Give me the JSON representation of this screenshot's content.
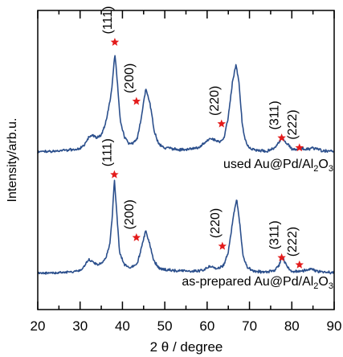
{
  "chart_data": {
    "type": "line",
    "xlabel": "2 θ / degree",
    "ylabel": "Intensity/arb.u.",
    "xlim": [
      20,
      90
    ],
    "xticks": [
      20,
      30,
      40,
      50,
      60,
      70,
      80,
      90
    ],
    "y_ticks_shown": false,
    "grid": false,
    "colors": {
      "line": "#2b4f8c",
      "marker": "#e31b1b",
      "axis": "#000000"
    },
    "series": [
      {
        "name": "used Au@Pd/Al2O3",
        "label_parts": [
          "used Au@Pd/Al",
          "2",
          "O",
          "3"
        ],
        "baseline": 0.55,
        "points": [
          [
            20,
            0.0
          ],
          [
            22,
            0.003
          ],
          [
            24,
            0.006
          ],
          [
            26,
            0.01
          ],
          [
            28,
            0.015
          ],
          [
            30,
            0.025
          ],
          [
            31,
            0.05
          ],
          [
            32,
            0.1
          ],
          [
            33,
            0.12
          ],
          [
            34,
            0.1
          ],
          [
            35,
            0.12
          ],
          [
            36,
            0.2
          ],
          [
            37,
            0.35
          ],
          [
            37.5,
            0.45
          ],
          [
            38.2,
            0.7
          ],
          [
            38.8,
            0.5
          ],
          [
            39.5,
            0.22
          ],
          [
            40.5,
            0.1
          ],
          [
            41.5,
            0.06
          ],
          [
            42.5,
            0.06
          ],
          [
            43.5,
            0.1
          ],
          [
            44.5,
            0.25
          ],
          [
            45.5,
            0.45
          ],
          [
            46.5,
            0.35
          ],
          [
            47.5,
            0.15
          ],
          [
            48.5,
            0.06
          ],
          [
            50,
            0.03
          ],
          [
            52,
            0.02
          ],
          [
            55,
            0.015
          ],
          [
            58,
            0.03
          ],
          [
            60,
            0.08
          ],
          [
            61,
            0.1
          ],
          [
            62,
            0.08
          ],
          [
            63,
            0.07
          ],
          [
            64,
            0.1
          ],
          [
            65,
            0.25
          ],
          [
            66,
            0.5
          ],
          [
            66.8,
            0.62
          ],
          [
            67.5,
            0.5
          ],
          [
            68.3,
            0.2
          ],
          [
            69,
            0.08
          ],
          [
            70,
            0.03
          ],
          [
            72,
            0.01
          ],
          [
            74,
            0.005
          ],
          [
            76,
            0.03
          ],
          [
            77,
            0.07
          ],
          [
            77.8,
            0.1
          ],
          [
            78.8,
            0.06
          ],
          [
            80,
            0.02
          ],
          [
            81,
            0.02
          ],
          [
            82,
            0.03
          ],
          [
            83,
            0.02
          ],
          [
            84,
            0.02
          ],
          [
            85,
            0.03
          ],
          [
            86,
            0.02
          ],
          [
            87,
            0.01
          ],
          [
            88,
            0.008
          ],
          [
            90,
            0.005
          ]
        ]
      },
      {
        "name": "as-prepared Au@Pd/Al2O3",
        "label_parts": [
          "as-prepared Au@Pd/Al",
          "2",
          "O",
          "3"
        ],
        "baseline": 0.0,
        "points": [
          [
            20,
            0.0
          ],
          [
            24,
            0.003
          ],
          [
            28,
            0.01
          ],
          [
            30,
            0.02
          ],
          [
            31,
            0.05
          ],
          [
            32,
            0.1
          ],
          [
            33,
            0.08
          ],
          [
            34,
            0.06
          ],
          [
            35,
            0.07
          ],
          [
            36,
            0.1
          ],
          [
            37,
            0.2
          ],
          [
            37.6,
            0.4
          ],
          [
            38.1,
            0.65
          ],
          [
            38.6,
            0.45
          ],
          [
            39.3,
            0.15
          ],
          [
            40.5,
            0.06
          ],
          [
            42,
            0.04
          ],
          [
            43.5,
            0.07
          ],
          [
            44.5,
            0.18
          ],
          [
            45.5,
            0.3
          ],
          [
            46.5,
            0.2
          ],
          [
            47.5,
            0.08
          ],
          [
            49,
            0.03
          ],
          [
            52,
            0.02
          ],
          [
            56,
            0.015
          ],
          [
            59,
            0.02
          ],
          [
            60.5,
            0.05
          ],
          [
            61.5,
            0.04
          ],
          [
            62.5,
            0.03
          ],
          [
            64,
            0.06
          ],
          [
            65,
            0.15
          ],
          [
            66.2,
            0.4
          ],
          [
            67,
            0.52
          ],
          [
            67.7,
            0.35
          ],
          [
            68.5,
            0.12
          ],
          [
            69.5,
            0.04
          ],
          [
            71,
            0.015
          ],
          [
            74,
            0.01
          ],
          [
            76,
            0.02
          ],
          [
            77,
            0.06
          ],
          [
            77.8,
            0.12
          ],
          [
            78.6,
            0.06
          ],
          [
            80,
            0.015
          ],
          [
            81.5,
            0.015
          ],
          [
            83,
            0.02
          ],
          [
            84.5,
            0.03
          ],
          [
            85.5,
            0.02
          ],
          [
            87,
            0.01
          ],
          [
            90,
            0.005
          ]
        ]
      }
    ],
    "annotations": [
      {
        "series": 0,
        "label": "(111)",
        "x": 38.2,
        "y": 0.78
      },
      {
        "series": 0,
        "label": "(200)",
        "x": 43.3,
        "y": 0.36
      },
      {
        "series": 0,
        "label": "(220)",
        "x": 63.4,
        "y": 0.2
      },
      {
        "series": 0,
        "label": "(311)",
        "x": 77.6,
        "y": 0.1
      },
      {
        "series": 0,
        "label": "(222)",
        "x": 81.8,
        "y": 0.03
      },
      {
        "series": 1,
        "label": "(111)",
        "x": 38.1,
        "y": 0.69
      },
      {
        "series": 1,
        "label": "(200)",
        "x": 43.3,
        "y": 0.25
      },
      {
        "series": 1,
        "label": "(220)",
        "x": 63.6,
        "y": 0.19
      },
      {
        "series": 1,
        "label": "(311)",
        "x": 77.6,
        "y": 0.11
      },
      {
        "series": 1,
        "label": "(222)",
        "x": 81.8,
        "y": 0.06
      }
    ]
  }
}
